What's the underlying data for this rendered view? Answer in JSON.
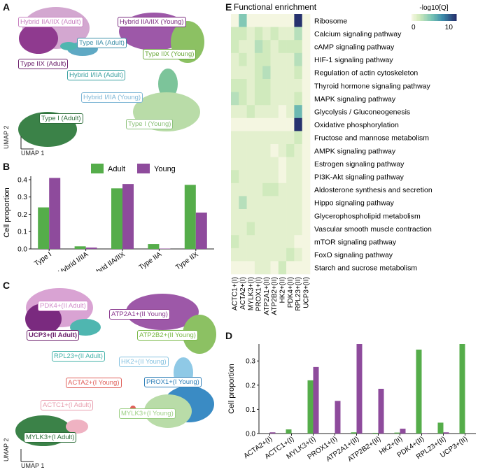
{
  "panels": {
    "a": {
      "letter": "A",
      "axis_x": "UMAP 1",
      "axis_y": "UMAP 2",
      "labels": [
        {
          "text": "Hybrid IIA/IIX (Adult)",
          "color": "#c77fbf"
        },
        {
          "text": "Hybrid IIA/IIX (Young)",
          "color": "#7a2a7f"
        },
        {
          "text": "Type IIA (Adult)",
          "color": "#3d8fa8"
        },
        {
          "text": "Type IIX (Adult)",
          "color": "#6b1f6b"
        },
        {
          "text": "Type IIX (Young)",
          "color": "#6aa83a"
        },
        {
          "text": "Hybrid I/IIA (Adult)",
          "color": "#3aa0a0"
        },
        {
          "text": "Hybrid I/IIA (Young)",
          "color": "#7fb7d6"
        },
        {
          "text": "Type I (Adult)",
          "color": "#2d6e3a"
        },
        {
          "text": "Type I (Young)",
          "color": "#8cc17a"
        }
      ]
    },
    "b": {
      "letter": "B"
    },
    "c": {
      "letter": "C",
      "axis_x": "UMAP 1",
      "axis_y": "UMAP 2",
      "labels": [
        {
          "text": "PDK4+(II Adult)",
          "color": "#d08ac8"
        },
        {
          "text": "ATP2A1+(II Young)",
          "color": "#8a3a8f"
        },
        {
          "text": "UCP3+(II Adult)",
          "color": "#6b1f6b"
        },
        {
          "text": "ATP2B2+(II Young)",
          "color": "#7ab848"
        },
        {
          "text": "RPL23+(II Adult)",
          "color": "#46b3aa"
        },
        {
          "text": "HK2+(II Young)",
          "color": "#86c2e0"
        },
        {
          "text": "ACTA2+(I Young)",
          "color": "#e0605a"
        },
        {
          "text": "PROX1+(I Young)",
          "color": "#2f7fb8"
        },
        {
          "text": "ACTC1+(I Adult)",
          "color": "#e8a0b0"
        },
        {
          "text": "MYLK3+(I Young)",
          "color": "#9ccf84"
        },
        {
          "text": "MYLK3+(I Adult)",
          "color": "#2d6e3a"
        }
      ]
    },
    "d": {
      "letter": "D"
    },
    "e": {
      "letter": "E"
    }
  },
  "colors": {
    "adult": "#55ad4a",
    "young": "#8e4b9c"
  },
  "chart_data": [
    {
      "id": "B",
      "type": "bar",
      "title": "",
      "ylabel": "Cell proportion",
      "xlabel": "",
      "ylim": [
        0,
        0.42
      ],
      "yticks": [
        "0.0",
        "0.1",
        "0.2",
        "0.3",
        "0.4"
      ],
      "categories": [
        "Type I",
        "Hybrid I/IIA",
        "Hybrid IIA/IIX",
        "Type IIA",
        "Type IIX"
      ],
      "series": [
        {
          "name": "Adult",
          "values": [
            0.24,
            0.015,
            0.35,
            0.028,
            0.37
          ]
        },
        {
          "name": "Young",
          "values": [
            0.41,
            0.008,
            0.375,
            0.002,
            0.21
          ]
        }
      ],
      "legend": "top-center"
    },
    {
      "id": "D",
      "type": "bar",
      "title": "",
      "ylabel": "Cell proportion",
      "xlabel": "",
      "ylim": [
        0,
        0.37
      ],
      "yticks": [
        "0.0",
        "0.1",
        "0.2",
        "0.3"
      ],
      "categories": [
        "ACTA2+(I)",
        "ACTC1+(I)",
        "MYLK3+(I)",
        "PROX1+(I)",
        "ATP2A1+(II)",
        "ATP2B2+(II)",
        "HK2+(II)",
        "PDK4+(II)",
        "RPL23+(II)",
        "UCP3+(II)"
      ],
      "series": [
        {
          "name": "Adult",
          "values": [
            0.0,
            0.017,
            0.22,
            0.0,
            0.005,
            0.003,
            0.004,
            0.347,
            0.045,
            0.37
          ]
        },
        {
          "name": "Young",
          "values": [
            0.005,
            0.0,
            0.275,
            0.135,
            0.37,
            0.185,
            0.02,
            0.002,
            0.005,
            0.0
          ]
        }
      ]
    },
    {
      "id": "E",
      "type": "heatmap",
      "title": "Functional enrichment",
      "colorbar_label": "-log10[Q]",
      "colorbar_ticks": [
        "0",
        "10"
      ],
      "colorbar_range": [
        0,
        12
      ],
      "columns": [
        "ACTC1+(I)",
        "ACTA2+(I)",
        "MYLK3+(I)",
        "PROX1+(I)",
        "ATP2A1+(II)",
        "ATP2B2+(II)",
        "HK2+(II)",
        "PDK4+(II)",
        "RPL23+(II)",
        "UCP3+(II)"
      ],
      "rows": [
        "Ribosome",
        "Calcium signaling pathway",
        "cAMP signaling pathway",
        "HIF-1 signaling pathway",
        "Regulation of actin cytoskeleton",
        "Thyroid hormone signaling pathway",
        "MAPK signaling pathway",
        "Glycolysis / Gluconeogenesis",
        "Oxidative phosphorylation",
        "Fructose and mannose metabolism",
        "AMPK signaling pathway",
        "Estrogen signaling pathway",
        "PI3K-Akt signaling pathway",
        "Aldosterone synthesis and secretion",
        "Hippo signaling pathway",
        "Glycerophospholipid metabolism",
        "Vascular smooth muscle contraction",
        "mTOR signaling pathway",
        "FoxO signaling pathway",
        "Starch and sucrose metabolism"
      ],
      "values": [
        [
          0,
          5,
          0,
          0,
          0,
          0,
          0,
          0,
          12,
          0
        ],
        [
          2,
          2,
          1,
          2,
          1,
          2,
          1,
          1,
          3,
          0
        ],
        [
          2,
          1,
          1,
          3,
          2,
          1,
          2,
          2,
          2,
          0
        ],
        [
          1,
          2,
          1,
          2,
          2,
          1,
          1,
          1,
          3,
          0
        ],
        [
          1,
          1,
          1,
          2,
          3,
          1,
          1,
          1,
          2,
          0
        ],
        [
          2,
          2,
          1,
          2,
          2,
          1,
          1,
          1,
          1,
          0
        ],
        [
          3,
          2,
          1,
          2,
          2,
          1,
          1,
          1,
          2,
          0
        ],
        [
          1,
          1,
          2,
          1,
          1,
          1,
          0,
          1,
          6,
          0
        ],
        [
          0,
          0,
          0,
          0,
          0,
          0,
          0,
          0,
          12,
          0
        ],
        [
          1,
          1,
          1,
          1,
          1,
          1,
          1,
          1,
          2,
          0
        ],
        [
          1,
          1,
          1,
          1,
          1,
          0,
          1,
          2,
          1,
          0
        ],
        [
          1,
          1,
          1,
          1,
          1,
          1,
          0,
          1,
          1,
          0
        ],
        [
          2,
          1,
          1,
          1,
          1,
          1,
          0,
          1,
          1,
          0
        ],
        [
          1,
          1,
          1,
          1,
          2,
          2,
          1,
          1,
          1,
          0
        ],
        [
          1,
          3,
          1,
          1,
          1,
          1,
          1,
          1,
          1,
          0
        ],
        [
          1,
          1,
          1,
          1,
          1,
          1,
          1,
          1,
          1,
          0
        ],
        [
          1,
          1,
          2,
          1,
          1,
          1,
          1,
          1,
          1,
          0
        ],
        [
          2,
          1,
          1,
          1,
          1,
          1,
          1,
          1,
          0,
          0
        ],
        [
          1,
          1,
          1,
          1,
          1,
          1,
          1,
          2,
          1,
          0
        ],
        [
          0,
          0,
          0,
          1,
          1,
          0,
          2,
          0,
          0,
          0
        ]
      ]
    }
  ]
}
